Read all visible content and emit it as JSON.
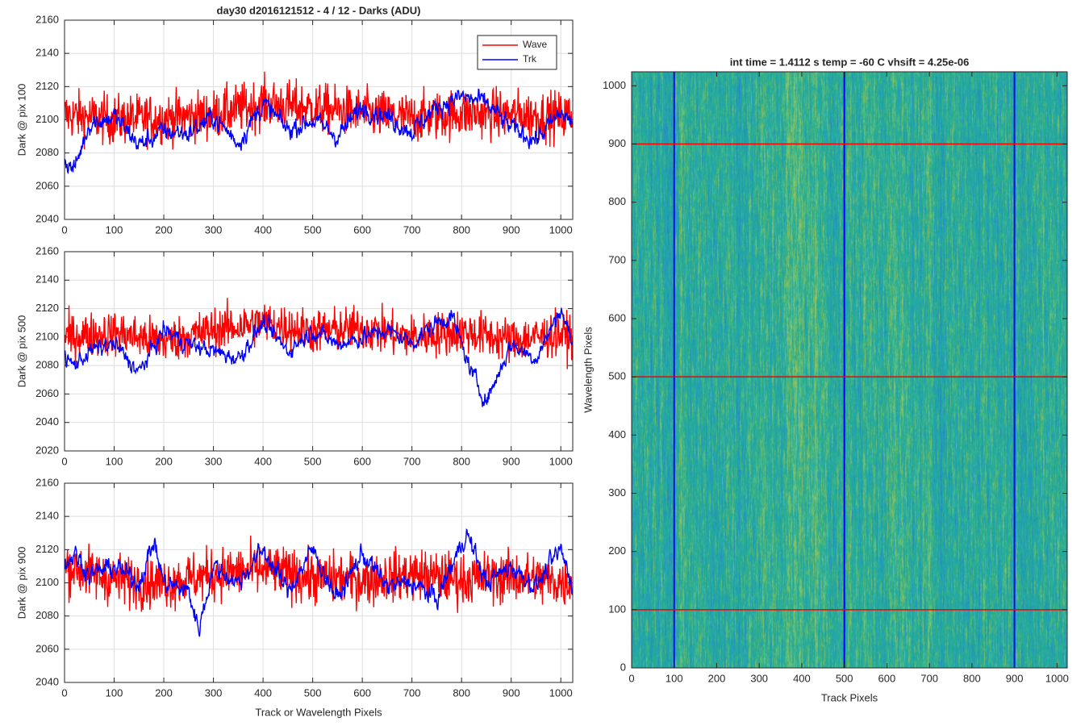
{
  "figure_title": "day30 d2016121512 - 4 / 12 - Darks (ADU)",
  "colors": {
    "wave": "#ff0000",
    "trk": "#0000ff",
    "grid": "#dedede",
    "axis": "#262626"
  },
  "chart_data": [
    {
      "type": "line",
      "title": "day30 d2016121512 - 4 / 12 - Darks (ADU)",
      "xlabel": "",
      "ylabel": "Dark @ pix 100",
      "xlim": [
        0,
        1024
      ],
      "ylim": [
        2040,
        2160
      ],
      "xticks": [
        0,
        100,
        200,
        300,
        400,
        500,
        600,
        700,
        800,
        900,
        1000
      ],
      "yticks": [
        2040,
        2060,
        2080,
        2100,
        2120,
        2140,
        2160
      ],
      "grid": true,
      "legend": {
        "placement": "top-right",
        "entries": [
          "Wave",
          "Trk"
        ]
      },
      "series": [
        {
          "name": "Wave",
          "color": "#ff0000",
          "noise": 10.5,
          "x": [
            0,
            100,
            200,
            300,
            400,
            500,
            600,
            700,
            800,
            900,
            1000,
            1024
          ],
          "values": [
            2103,
            2100,
            2101,
            2103,
            2110,
            2107,
            2104,
            2101,
            2104,
            2103,
            2102,
            2103
          ]
        },
        {
          "name": "Trk",
          "color": "#0000ff",
          "noise": 3.5,
          "x": [
            0,
            20,
            50,
            100,
            150,
            200,
            250,
            300,
            350,
            400,
            450,
            500,
            550,
            600,
            650,
            700,
            750,
            800,
            850,
            900,
            950,
            1000,
            1024
          ],
          "values": [
            2075,
            2070,
            2098,
            2102,
            2085,
            2093,
            2092,
            2102,
            2086,
            2110,
            2094,
            2100,
            2090,
            2108,
            2102,
            2093,
            2108,
            2114,
            2110,
            2095,
            2088,
            2104,
            2098
          ]
        }
      ]
    },
    {
      "type": "line",
      "title": "",
      "xlabel": "",
      "ylabel": "Dark @ pix 500",
      "xlim": [
        0,
        1024
      ],
      "ylim": [
        2020,
        2160
      ],
      "xticks": [
        0,
        100,
        200,
        300,
        400,
        500,
        600,
        700,
        800,
        900,
        1000
      ],
      "yticks": [
        2020,
        2040,
        2060,
        2080,
        2100,
        2120,
        2140,
        2160
      ],
      "grid": true,
      "series": [
        {
          "name": "Wave",
          "color": "#ff0000",
          "noise": 11,
          "x": [
            0,
            100,
            200,
            300,
            400,
            500,
            600,
            700,
            800,
            900,
            1000,
            1024
          ],
          "values": [
            2100,
            2103,
            2097,
            2105,
            2110,
            2104,
            2106,
            2100,
            2104,
            2098,
            2102,
            2100
          ]
        },
        {
          "name": "Trk",
          "color": "#0000ff",
          "noise": 3.5,
          "x": [
            0,
            20,
            50,
            100,
            150,
            200,
            250,
            300,
            350,
            400,
            450,
            500,
            550,
            600,
            650,
            700,
            750,
            780,
            820,
            850,
            900,
            950,
            1000,
            1024
          ],
          "values": [
            2085,
            2080,
            2090,
            2095,
            2075,
            2105,
            2095,
            2090,
            2085,
            2110,
            2090,
            2105,
            2095,
            2100,
            2105,
            2096,
            2110,
            2115,
            2075,
            2055,
            2095,
            2085,
            2120,
            2095
          ]
        }
      ]
    },
    {
      "type": "line",
      "title": "",
      "xlabel": "Track or Wavelength Pixels",
      "ylabel": "Dark @ pix 900",
      "xlim": [
        0,
        1024
      ],
      "ylim": [
        2040,
        2160
      ],
      "xticks": [
        0,
        100,
        200,
        300,
        400,
        500,
        600,
        700,
        800,
        900,
        1000
      ],
      "yticks": [
        2040,
        2060,
        2080,
        2100,
        2120,
        2140,
        2160
      ],
      "grid": true,
      "series": [
        {
          "name": "Wave",
          "color": "#ff0000",
          "noise": 11,
          "x": [
            0,
            100,
            200,
            300,
            400,
            500,
            600,
            700,
            800,
            900,
            1000,
            1024
          ],
          "values": [
            2110,
            2102,
            2100,
            2105,
            2108,
            2103,
            2102,
            2105,
            2102,
            2104,
            2100,
            2102
          ]
        },
        {
          "name": "Trk",
          "color": "#0000ff",
          "noise": 3.5,
          "x": [
            0,
            20,
            50,
            100,
            150,
            180,
            200,
            250,
            270,
            300,
            350,
            400,
            450,
            500,
            550,
            600,
            650,
            700,
            750,
            810,
            850,
            900,
            950,
            1000,
            1024
          ],
          "values": [
            2110,
            2118,
            2105,
            2110,
            2100,
            2125,
            2100,
            2095,
            2072,
            2110,
            2100,
            2120,
            2095,
            2120,
            2090,
            2118,
            2098,
            2100,
            2090,
            2130,
            2100,
            2110,
            2098,
            2120,
            2098
          ]
        }
      ]
    },
    {
      "type": "heatmap",
      "title": "int time = 1.4112 s    temp = -60 C    vhsift = 4.25e-06",
      "xlabel": "Track Pixels",
      "ylabel": "Wavelength Pixels",
      "xlim": [
        0,
        1024
      ],
      "ylim": [
        0,
        1024
      ],
      "xticks": [
        0,
        100,
        200,
        300,
        400,
        500,
        600,
        700,
        800,
        900,
        1000
      ],
      "yticks": [
        0,
        100,
        200,
        300,
        400,
        500,
        600,
        700,
        800,
        900,
        1000
      ],
      "colormap": [
        "#2f7dc9",
        "#1f9fb4",
        "#2cb08f",
        "#7fc169",
        "#c7c44a"
      ],
      "value_range": [
        2070,
        2130
      ],
      "vlines": {
        "x": [
          100,
          500,
          900
        ],
        "color": "#0000ff"
      },
      "hlines": {
        "y": [
          100,
          500,
          900
        ],
        "color": "#ff0000"
      }
    }
  ]
}
